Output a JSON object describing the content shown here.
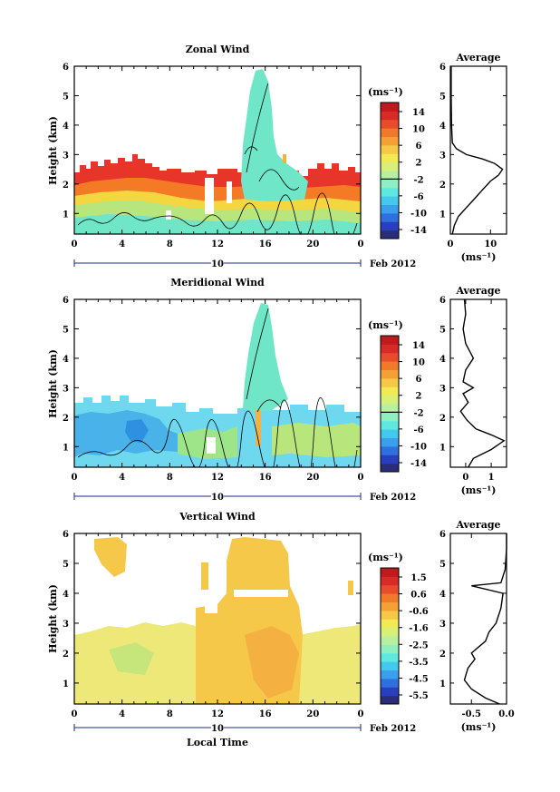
{
  "chart_data": [
    {
      "type": "heatmap",
      "title": "Zonal Wind",
      "ylabel": "Height (km)",
      "xticks": [
        "0",
        "4",
        "8",
        "12",
        "16",
        "20",
        "0"
      ],
      "yticks": [
        "1",
        "2",
        "3",
        "4",
        "5",
        "6"
      ],
      "xlim": [
        0,
        24
      ],
      "ylim": [
        0.3,
        6
      ],
      "date_label": "10",
      "month_label": "Feb 2012",
      "colorbar": {
        "unit": "(ms⁻¹)",
        "ticks": [
          "14",
          "10",
          "6",
          "2",
          "-2",
          "-6",
          "-10",
          "-14"
        ],
        "range": [
          -16,
          16
        ]
      },
      "layers": [
        {
          "level": "8 to 16 (red/orange)",
          "x": [
            0,
            24
          ],
          "y": [
            1.7,
            2.9
          ]
        },
        {
          "level": "2 to 8 (yellow)",
          "x": [
            0,
            24
          ],
          "y": [
            1.2,
            2.1
          ]
        },
        {
          "level": "-2 to 2 (cyan)",
          "x": [
            0,
            24
          ],
          "y": [
            0.3,
            6
          ]
        }
      ],
      "profile": {
        "title": "Average",
        "xlabel": "(ms⁻¹)",
        "xticks": [
          "0",
          "10"
        ],
        "xlim": [
          0,
          14
        ],
        "points": [
          [
            0.5,
            0.3
          ],
          [
            1,
            0.6
          ],
          [
            2,
            0.9
          ],
          [
            4,
            1.2
          ],
          [
            6,
            1.5
          ],
          [
            8,
            1.8
          ],
          [
            10,
            2.1
          ],
          [
            12,
            2.3
          ],
          [
            13,
            2.5
          ],
          [
            11,
            2.7
          ],
          [
            8,
            2.85
          ],
          [
            4,
            3.0
          ],
          [
            1.5,
            3.2
          ],
          [
            0.5,
            3.4
          ],
          [
            0.3,
            4.0
          ],
          [
            0.2,
            5.0
          ],
          [
            0.2,
            6.0
          ]
        ]
      }
    },
    {
      "type": "heatmap",
      "title": "Meridional Wind",
      "ylabel": "Height (km)",
      "xticks": [
        "0",
        "4",
        "8",
        "12",
        "16",
        "20",
        "0"
      ],
      "yticks": [
        "1",
        "2",
        "3",
        "4",
        "5",
        "6"
      ],
      "xlim": [
        0,
        24
      ],
      "ylim": [
        0.3,
        6
      ],
      "date_label": "10",
      "month_label": "Feb 2012",
      "colorbar": {
        "unit": "(ms⁻¹)",
        "ticks": [
          "14",
          "10",
          "6",
          "2",
          "-2",
          "-6",
          "-10",
          "-14"
        ],
        "range": [
          -16,
          16
        ]
      },
      "layers": [
        {
          "level": "-6 to -2 (blue)",
          "x": [
            0,
            24
          ],
          "y": [
            1.0,
            2.6
          ]
        },
        {
          "level": "-2 to 2 (cyan)",
          "x": [
            0,
            24
          ],
          "y": [
            0.3,
            6
          ]
        }
      ],
      "profile": {
        "title": "Average",
        "xlabel": "(ms⁻¹)",
        "xticks": [
          "0",
          "1"
        ],
        "xlim": [
          -0.6,
          1.6
        ],
        "points": [
          [
            0.1,
            0.3
          ],
          [
            0.3,
            0.6
          ],
          [
            1.0,
            0.9
          ],
          [
            1.5,
            1.2
          ],
          [
            1.0,
            1.4
          ],
          [
            0.4,
            1.6
          ],
          [
            0.05,
            1.9
          ],
          [
            -0.2,
            2.2
          ],
          [
            0.1,
            2.5
          ],
          [
            -0.1,
            2.8
          ],
          [
            0.3,
            3.0
          ],
          [
            -0.1,
            3.2
          ],
          [
            0.0,
            3.6
          ],
          [
            0.3,
            4.0
          ],
          [
            0.0,
            4.5
          ],
          [
            -0.1,
            5.0
          ],
          [
            0.0,
            5.5
          ],
          [
            -0.05,
            6.0
          ]
        ]
      }
    },
    {
      "type": "heatmap",
      "title": "Vertical Wind",
      "ylabel": "Height (km)",
      "xlabel": "Local Time",
      "xticks": [
        "0",
        "4",
        "8",
        "12",
        "16",
        "20",
        "0"
      ],
      "yticks": [
        "1",
        "2",
        "3",
        "4",
        "5",
        "6"
      ],
      "xlim": [
        0,
        24
      ],
      "ylim": [
        0.3,
        6
      ],
      "date_label": "10",
      "month_label": "Feb 2012",
      "colorbar": {
        "unit": "(ms⁻¹)",
        "ticks": [
          "1.5",
          "0.6",
          "-0.6",
          "-1.6",
          "-2.5",
          "-3.5",
          "-4.5",
          "-5.5"
        ],
        "range": [
          -6,
          2
        ]
      },
      "layers": [
        {
          "level": "-0.6 to 0.6 (yellow/green)",
          "x": [
            0,
            24
          ],
          "y": [
            0.3,
            2.7
          ]
        },
        {
          "level": "0 to 0.6 (orange)",
          "x": [
            10.3,
            19
          ],
          "y": [
            0.3,
            6
          ]
        }
      ],
      "profile": {
        "title": "Average",
        "xlabel": "(ms⁻¹)",
        "xticks": [
          "-0.5",
          "0.0"
        ],
        "xlim": [
          -0.8,
          0.0
        ],
        "points": [
          [
            -0.1,
            0.3
          ],
          [
            -0.3,
            0.5
          ],
          [
            -0.5,
            0.8
          ],
          [
            -0.6,
            1.1
          ],
          [
            -0.55,
            1.5
          ],
          [
            -0.45,
            1.8
          ],
          [
            -0.5,
            2.0
          ],
          [
            -0.3,
            2.4
          ],
          [
            -0.25,
            2.7
          ],
          [
            -0.15,
            3.0
          ],
          [
            -0.08,
            3.5
          ],
          [
            -0.05,
            4.0
          ],
          [
            -0.5,
            4.25
          ],
          [
            -0.08,
            4.35
          ],
          [
            -0.02,
            4.8
          ],
          [
            0.0,
            5.5
          ],
          [
            0.0,
            6.0
          ]
        ]
      }
    }
  ]
}
